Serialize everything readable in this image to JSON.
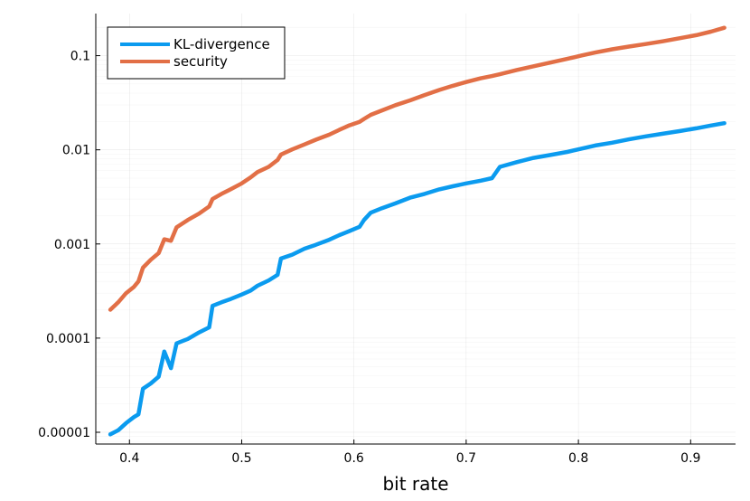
{
  "chart_data": {
    "type": "line",
    "title": "",
    "xlabel": "bit rate",
    "ylabel": "",
    "xlim": [
      0.37,
      0.94
    ],
    "ylim": [
      7.5e-06,
      0.28
    ],
    "yscale": "log",
    "x_ticks": [
      0.4,
      0.5,
      0.6,
      0.7,
      0.8,
      0.9
    ],
    "x_tick_labels": [
      "0.4",
      "0.5",
      "0.6",
      "0.7",
      "0.8",
      "0.9"
    ],
    "y_ticks": [
      1e-05,
      0.0001,
      0.001,
      0.01,
      0.1
    ],
    "y_tick_labels": [
      "0.00001",
      "0.0001",
      "0.001",
      "0.01",
      "0.1"
    ],
    "grid": true,
    "legend_position": "top-left",
    "series": [
      {
        "name": "KL-divergence",
        "color": "#0b9bef",
        "x": [
          0.383,
          0.39,
          0.397,
          0.404,
          0.408,
          0.412,
          0.419,
          0.426,
          0.431,
          0.437,
          0.442,
          0.452,
          0.462,
          0.471,
          0.474,
          0.482,
          0.49,
          0.5,
          0.508,
          0.514,
          0.524,
          0.532,
          0.535,
          0.545,
          0.556,
          0.566,
          0.578,
          0.587,
          0.596,
          0.605,
          0.609,
          0.615,
          0.625,
          0.637,
          0.65,
          0.663,
          0.676,
          0.688,
          0.7,
          0.713,
          0.723,
          0.73,
          0.745,
          0.76,
          0.775,
          0.79,
          0.803,
          0.815,
          0.83,
          0.845,
          0.86,
          0.875,
          0.89,
          0.905,
          0.918,
          0.93
        ],
        "y": [
          9.5e-06,
          1.05e-05,
          1.25e-05,
          1.45e-05,
          1.55e-05,
          2.9e-05,
          3.3e-05,
          3.9e-05,
          7.2e-05,
          4.8e-05,
          8.8e-05,
          9.8e-05,
          0.000115,
          0.00013,
          0.00022,
          0.00024,
          0.00026,
          0.00029,
          0.00032,
          0.00036,
          0.00041,
          0.00047,
          0.0007,
          0.00077,
          0.00089,
          0.00098,
          0.00111,
          0.00124,
          0.00137,
          0.00152,
          0.0018,
          0.00215,
          0.0024,
          0.0027,
          0.0031,
          0.0034,
          0.0038,
          0.0041,
          0.0044,
          0.0047,
          0.005,
          0.0066,
          0.0074,
          0.0082,
          0.0088,
          0.0095,
          0.0103,
          0.0111,
          0.0119,
          0.0129,
          0.0139,
          0.0148,
          0.0158,
          0.0169,
          0.0181,
          0.0192
        ]
      },
      {
        "name": "security",
        "color": "#e26f46",
        "x": [
          0.383,
          0.39,
          0.397,
          0.404,
          0.408,
          0.412,
          0.419,
          0.426,
          0.431,
          0.437,
          0.442,
          0.452,
          0.462,
          0.471,
          0.474,
          0.482,
          0.49,
          0.5,
          0.508,
          0.514,
          0.524,
          0.532,
          0.535,
          0.545,
          0.556,
          0.566,
          0.578,
          0.587,
          0.596,
          0.605,
          0.609,
          0.615,
          0.625,
          0.637,
          0.65,
          0.663,
          0.676,
          0.688,
          0.7,
          0.713,
          0.723,
          0.73,
          0.745,
          0.76,
          0.775,
          0.79,
          0.803,
          0.815,
          0.83,
          0.845,
          0.86,
          0.875,
          0.89,
          0.905,
          0.918,
          0.93
        ],
        "y": [
          0.0002,
          0.00024,
          0.0003,
          0.00035,
          0.0004,
          0.00056,
          0.00068,
          0.0008,
          0.00112,
          0.00108,
          0.0015,
          0.0018,
          0.0021,
          0.0025,
          0.003,
          0.0034,
          0.0038,
          0.0044,
          0.0051,
          0.0058,
          0.0066,
          0.0078,
          0.0089,
          0.0101,
          0.0114,
          0.0128,
          0.0145,
          0.0163,
          0.0182,
          0.0198,
          0.0213,
          0.0235,
          0.0262,
          0.0298,
          0.0335,
          0.0382,
          0.0432,
          0.0478,
          0.0525,
          0.0575,
          0.0608,
          0.0635,
          0.0705,
          0.0772,
          0.0845,
          0.0925,
          0.1005,
          0.108,
          0.117,
          0.125,
          0.133,
          0.142,
          0.153,
          0.165,
          0.18,
          0.198
        ]
      }
    ]
  }
}
